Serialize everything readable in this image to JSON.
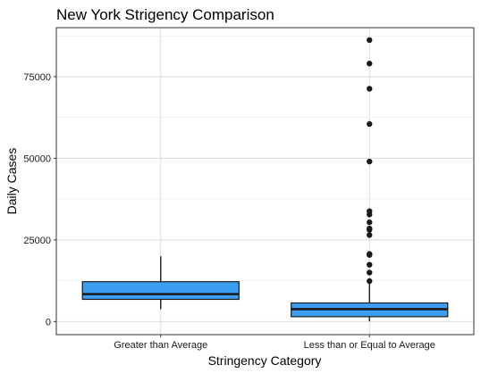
{
  "chart_data": {
    "type": "boxplot",
    "title": "New York Strigency Comparison",
    "xlabel": "Stringency Category",
    "ylabel": "Daily Cases",
    "ylim": [
      -4000,
      90000
    ],
    "yticks": [
      0,
      25000,
      50000,
      75000
    ],
    "ytick_labels": [
      "0",
      "25000",
      "50000",
      "75000"
    ],
    "grid": true,
    "fill_color": "#3d9df3",
    "categories": [
      "Greater than Average",
      "Less than or Equal to Average"
    ],
    "boxes": [
      {
        "category": "Greater than Average",
        "whisker_low": 3800,
        "q1": 6800,
        "median": 8400,
        "q3": 12200,
        "whisker_high": 20000,
        "outliers": []
      },
      {
        "category": "Less than or Equal to Average",
        "whisker_low": 100,
        "q1": 1500,
        "median": 3800,
        "q3": 5700,
        "whisker_high": 11800,
        "outliers": [
          12400,
          15000,
          17400,
          20400,
          20700,
          26500,
          28100,
          28500,
          30400,
          32800,
          33800,
          49000,
          60500,
          71300,
          79000,
          86200
        ]
      }
    ]
  }
}
